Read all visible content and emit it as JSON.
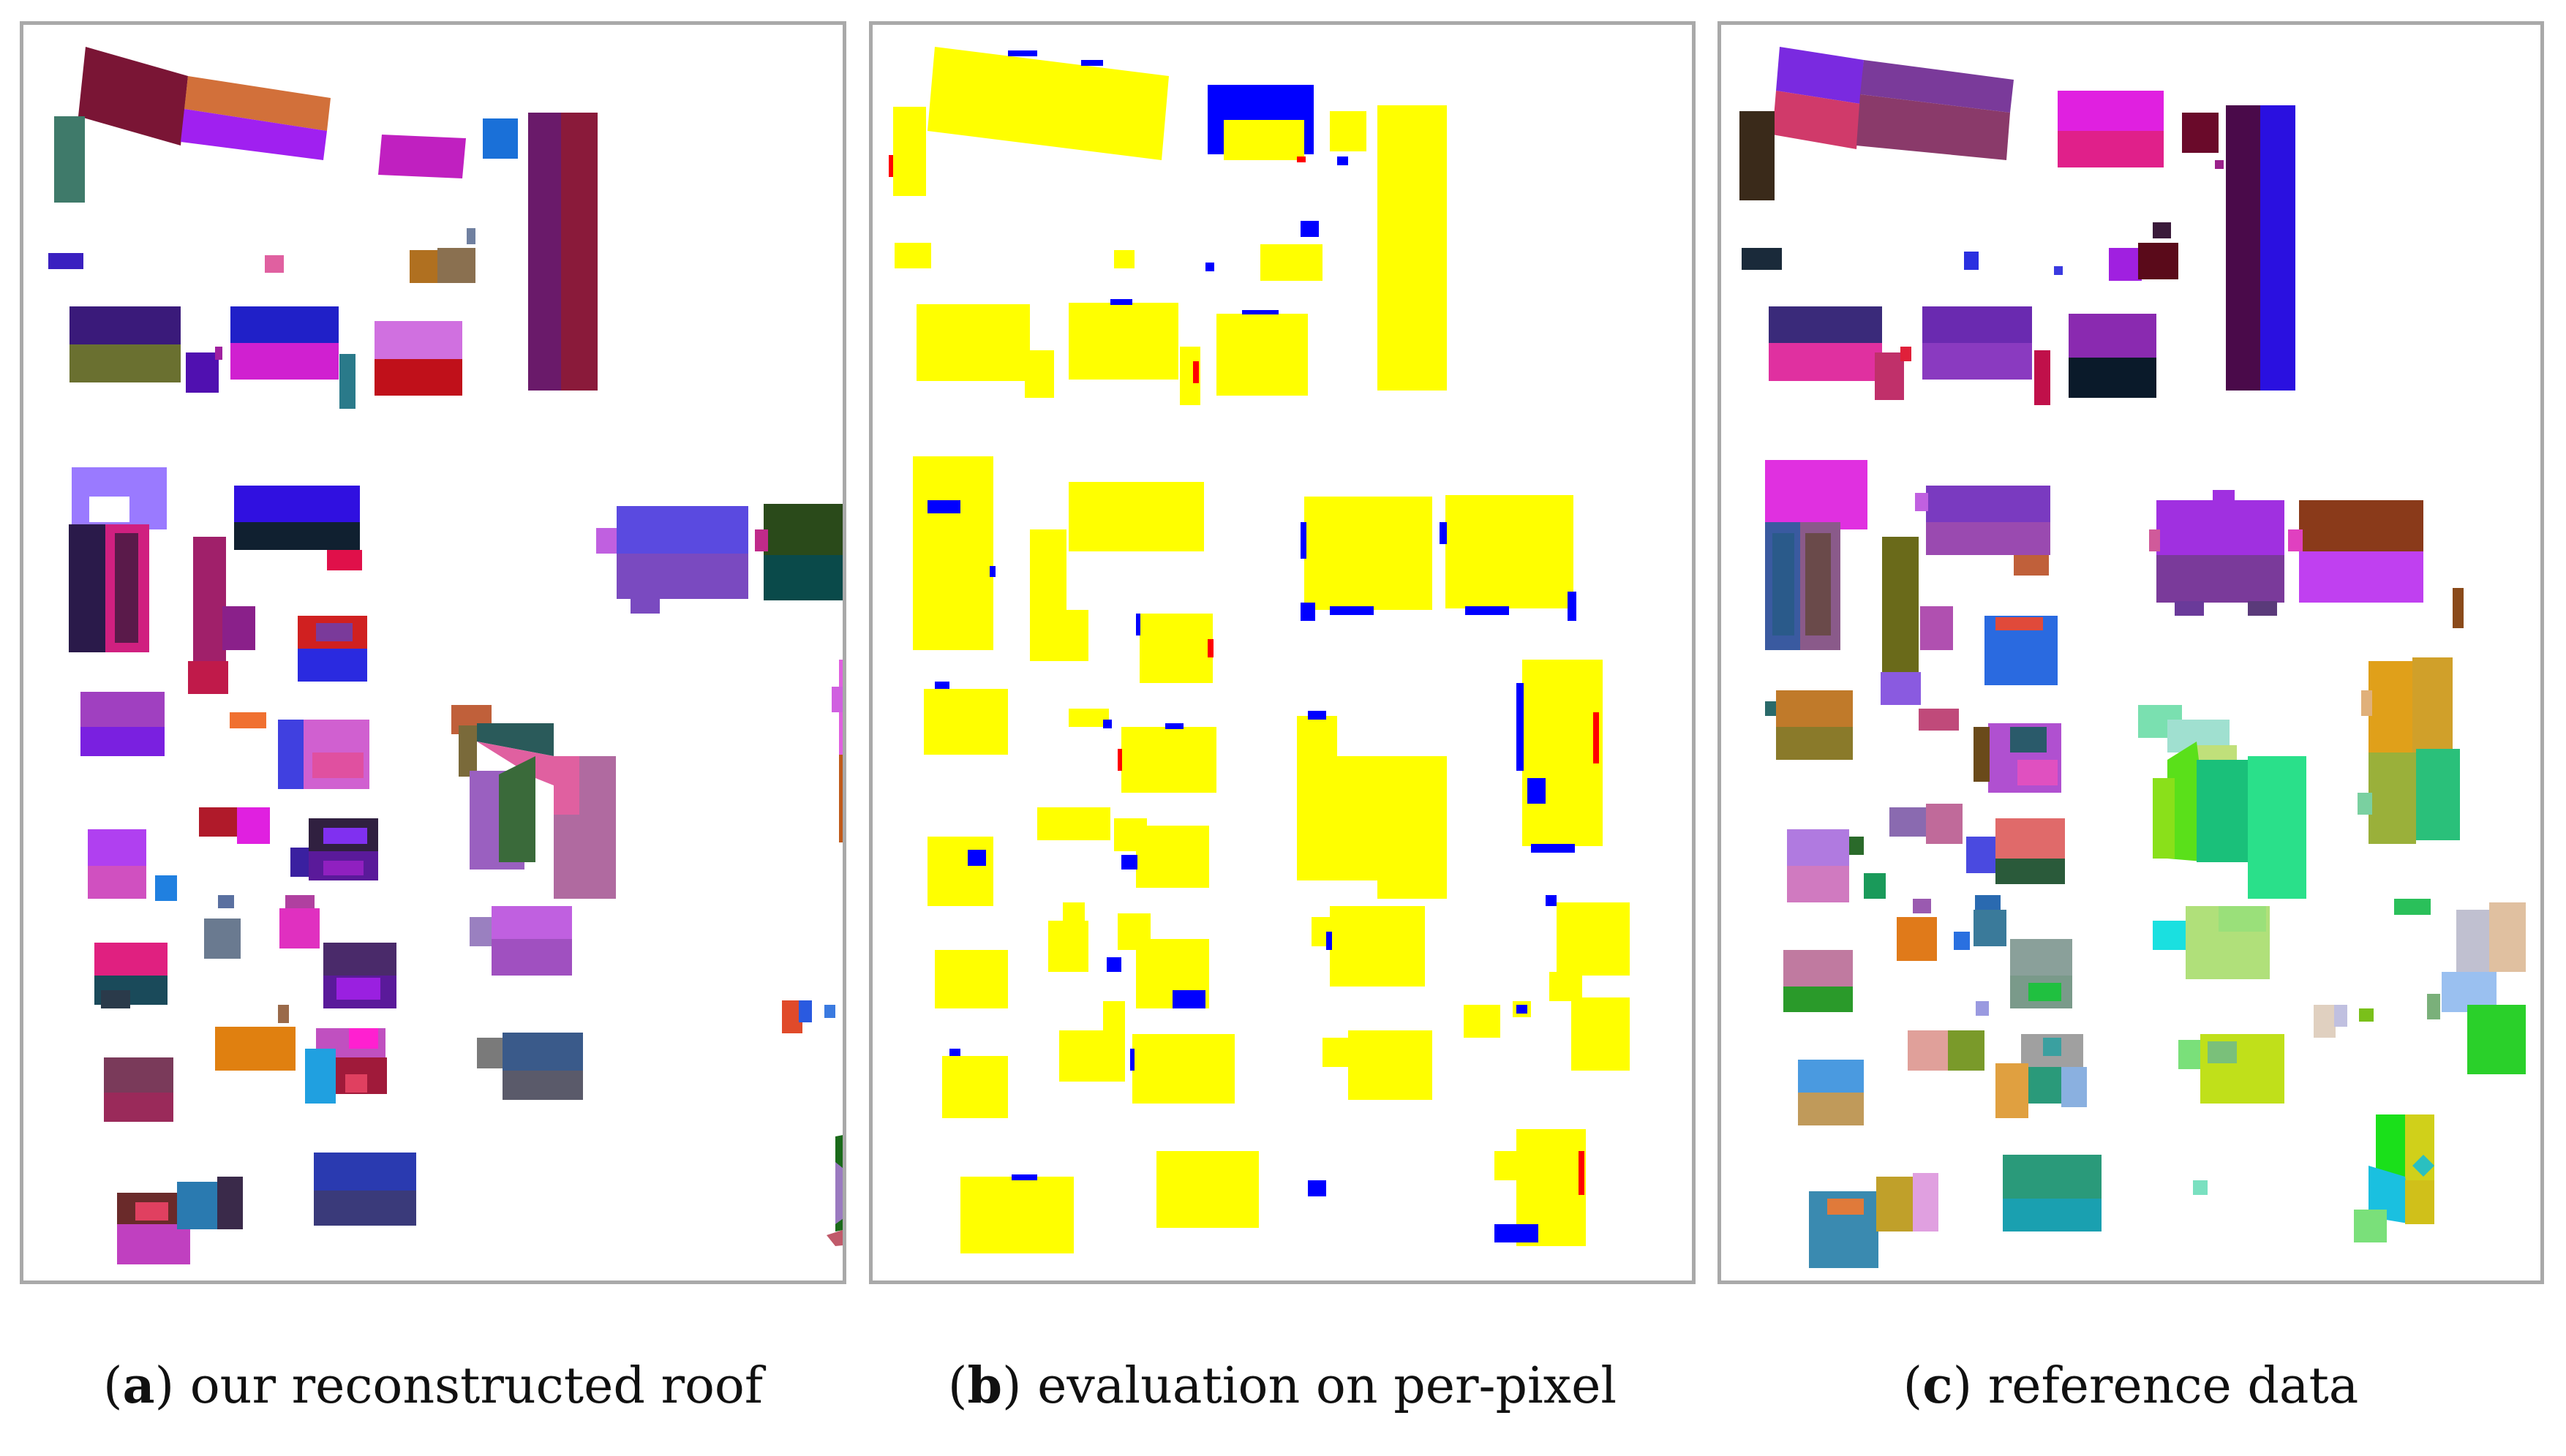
{
  "figure": {
    "panels": [
      {
        "id": "a",
        "label": "a",
        "caption": "our reconstructed roof"
      },
      {
        "id": "b",
        "label": "b",
        "caption": "evaluation on per-pixel"
      },
      {
        "id": "c",
        "label": "c",
        "caption": "reference data"
      }
    ]
  },
  "colors": {
    "frame": "#a9a9a9",
    "true_positive": "#ffff00",
    "false_negative": "#0000ff",
    "false_positive": "#ff0000"
  }
}
